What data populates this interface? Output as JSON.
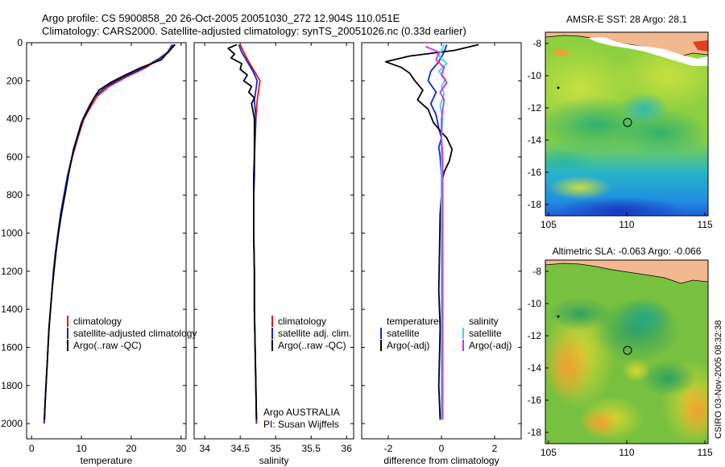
{
  "header": {
    "line1": "Argo profile: CS 5900858_20 26-Oct-2005 20051030_272 12.904S 110.051E",
    "line2": "Climatology: CARS2000. Satellite-adjusted climatology: synTS_20051026.nc (0.33d earlier)"
  },
  "credit": "CSIRO 03-Nov-2005 08:32:38",
  "colors": {
    "climatology": "#e8141c",
    "satellite": "#1428c8",
    "argo": "#000000",
    "salinity_satellite": "#28e0f0",
    "salinity_argo": "#e028e0",
    "land": "#f2b890"
  },
  "chart_data": [
    {
      "type": "line",
      "title": "",
      "xlabel": "temperature",
      "ylabel": "",
      "xlim": [
        -1,
        31
      ],
      "ylim": [
        2080,
        0
      ],
      "xticks": [
        0,
        10,
        20,
        30
      ],
      "xtick_labels": [
        "0",
        "10",
        "20",
        "30"
      ],
      "yticks": [
        0,
        200,
        400,
        600,
        800,
        1000,
        1200,
        1400,
        1600,
        1800,
        2000
      ],
      "ytick_labels": [
        "0",
        "200",
        "400",
        "600",
        "800",
        "1000",
        "1200",
        "1400",
        "1600",
        "1800",
        "2000"
      ],
      "legend": [
        "climatology",
        "satellite-adjusted climatology",
        "Argo(..raw -QC)"
      ],
      "series": [
        {
          "name": "climatology",
          "color": "#e8141c",
          "points": [
            [
              28.5,
              10
            ],
            [
              27.5,
              50
            ],
            [
              26,
              80
            ],
            [
              23,
              130
            ],
            [
              19,
              180
            ],
            [
              15.5,
              230
            ],
            [
              13.2,
              280
            ],
            [
              12,
              330
            ],
            [
              10.5,
              400
            ],
            [
              9.3,
              500
            ],
            [
              8.2,
              600
            ],
            [
              7.3,
              700
            ],
            [
              6.6,
              800
            ],
            [
              5.9,
              900
            ],
            [
              5.3,
              1000
            ],
            [
              4.8,
              1100
            ],
            [
              4.4,
              1200
            ],
            [
              4.1,
              1300
            ],
            [
              3.8,
              1400
            ],
            [
              3.5,
              1500
            ],
            [
              3.3,
              1600
            ],
            [
              3.1,
              1700
            ],
            [
              2.9,
              1800
            ],
            [
              2.7,
              1900
            ],
            [
              2.5,
              2000
            ]
          ]
        },
        {
          "name": "satellite-adjusted climatology",
          "color": "#1428c8",
          "points": [
            [
              28.2,
              10
            ],
            [
              27.3,
              50
            ],
            [
              25.8,
              80
            ],
            [
              22.6,
              130
            ],
            [
              18.5,
              180
            ],
            [
              15,
              230
            ],
            [
              12.8,
              280
            ],
            [
              11.6,
              330
            ],
            [
              10.3,
              400
            ],
            [
              9.2,
              500
            ],
            [
              8.1,
              600
            ],
            [
              7.2,
              700
            ],
            [
              6.5,
              800
            ],
            [
              5.8,
              900
            ],
            [
              5.3,
              1000
            ],
            [
              4.8,
              1100
            ],
            [
              4.4,
              1200
            ],
            [
              4.1,
              1300
            ],
            [
              3.8,
              1400
            ],
            [
              3.5,
              1500
            ],
            [
              3.3,
              1600
            ],
            [
              3.1,
              1700
            ],
            [
              2.9,
              1800
            ],
            [
              2.7,
              1900
            ],
            [
              2.5,
              2000
            ]
          ]
        },
        {
          "name": "Argo(..raw -QC)",
          "color": "#000000",
          "points": [
            [
              28.8,
              10
            ],
            [
              27,
              60
            ],
            [
              26,
              90
            ],
            [
              22,
              130
            ],
            [
              18.8,
              170
            ],
            [
              15.8,
              210
            ],
            [
              13.5,
              250
            ],
            [
              12.3,
              300
            ],
            [
              11.2,
              360
            ],
            [
              10,
              420
            ],
            [
              9.1,
              500
            ],
            [
              8.4,
              560
            ],
            [
              7.5,
              680
            ],
            [
              6.7,
              800
            ],
            [
              6,
              900
            ],
            [
              5.4,
              1000
            ],
            [
              4.9,
              1100
            ],
            [
              4.5,
              1200
            ],
            [
              4.1,
              1300
            ],
            [
              3.8,
              1400
            ],
            [
              3.5,
              1500
            ],
            [
              3.3,
              1600
            ],
            [
              3.1,
              1700
            ],
            [
              2.9,
              1800
            ],
            [
              2.7,
              1900
            ],
            [
              2.6,
              1980
            ]
          ]
        }
      ]
    },
    {
      "type": "line",
      "title": "",
      "xlabel": "salinity",
      "ylabel": "",
      "xlim": [
        33.85,
        36.1
      ],
      "ylim": [
        2080,
        0
      ],
      "xticks": [
        34,
        34.5,
        35,
        35.5,
        36
      ],
      "xtick_labels": [
        "34",
        "34.5",
        "35",
        "35.5",
        "36"
      ],
      "legend": [
        "climatology",
        "satellite adj. clim.",
        "Argo(..raw -QC)"
      ],
      "annotations": [
        "Argo AUSTRALIA",
        "PI: Susan Wijffels"
      ],
      "series": [
        {
          "name": "climatology",
          "color": "#e8141c",
          "points": [
            [
              34.5,
              10
            ],
            [
              34.55,
              50
            ],
            [
              34.62,
              100
            ],
            [
              34.7,
              150
            ],
            [
              34.78,
              200
            ],
            [
              34.76,
              250
            ],
            [
              34.74,
              300
            ],
            [
              34.72,
              400
            ],
            [
              34.71,
              500
            ],
            [
              34.7,
              600
            ],
            [
              34.7,
              700
            ],
            [
              34.69,
              800
            ],
            [
              34.69,
              1000
            ],
            [
              34.7,
              1200
            ],
            [
              34.7,
              1400
            ],
            [
              34.71,
              1600
            ],
            [
              34.72,
              1800
            ],
            [
              34.73,
              2000
            ]
          ]
        },
        {
          "name": "satellite adj. clim.",
          "color": "#1428c8",
          "points": [
            [
              34.48,
              10
            ],
            [
              34.52,
              50
            ],
            [
              34.6,
              100
            ],
            [
              34.68,
              150
            ],
            [
              34.74,
              200
            ],
            [
              34.72,
              250
            ],
            [
              34.7,
              300
            ],
            [
              34.72,
              400
            ],
            [
              34.71,
              500
            ],
            [
              34.7,
              600
            ],
            [
              34.7,
              700
            ],
            [
              34.69,
              800
            ],
            [
              34.69,
              1000
            ],
            [
              34.7,
              1200
            ],
            [
              34.7,
              1400
            ],
            [
              34.71,
              1600
            ],
            [
              34.72,
              1800
            ],
            [
              34.73,
              2000
            ]
          ]
        },
        {
          "name": "Argo(..raw -QC)",
          "color": "#000000",
          "points": [
            [
              34.45,
              10
            ],
            [
              34.33,
              30
            ],
            [
              34.42,
              60
            ],
            [
              34.37,
              80
            ],
            [
              34.52,
              110
            ],
            [
              34.5,
              140
            ],
            [
              34.6,
              170
            ],
            [
              34.55,
              200
            ],
            [
              34.66,
              230
            ],
            [
              34.62,
              260
            ],
            [
              34.7,
              290
            ],
            [
              34.66,
              320
            ],
            [
              34.7,
              400
            ],
            [
              34.7,
              500
            ],
            [
              34.7,
              600
            ],
            [
              34.69,
              700
            ],
            [
              34.69,
              800
            ],
            [
              34.69,
              1000
            ],
            [
              34.7,
              1200
            ],
            [
              34.7,
              1400
            ],
            [
              34.71,
              1600
            ],
            [
              34.72,
              1800
            ],
            [
              34.73,
              1980
            ]
          ]
        }
      ]
    },
    {
      "type": "line",
      "title": "",
      "xlabel": "difference from climatology",
      "ylabel": "",
      "xlim": [
        -3,
        3
      ],
      "ylim": [
        2080,
        0
      ],
      "xticks": [
        -2,
        0,
        2
      ],
      "xtick_labels": [
        "-2",
        "0",
        "2"
      ],
      "legend": [
        "temperature",
        "satellite",
        "Argo(-adj)",
        "salinity",
        "satellite",
        "Argo(-adj)"
      ],
      "series": [
        {
          "name": "temperature satellite",
          "color": "#1428c8",
          "points": [
            [
              0.2,
              10
            ],
            [
              0.1,
              50
            ],
            [
              -0.1,
              100
            ],
            [
              -0.4,
              150
            ],
            [
              -0.5,
              200
            ],
            [
              -0.2,
              260
            ],
            [
              -0.4,
              320
            ],
            [
              -0.2,
              380
            ],
            [
              -0.1,
              450
            ],
            [
              0,
              500
            ],
            [
              -0.1,
              550
            ],
            [
              -0.05,
              600
            ],
            [
              0,
              700
            ],
            [
              0,
              800
            ],
            [
              0,
              1000
            ],
            [
              0,
              1400
            ],
            [
              0,
              1800
            ],
            [
              0,
              1980
            ]
          ]
        },
        {
          "name": "temperature Argo(-adj)",
          "color": "#000000",
          "points": [
            [
              1.4,
              10
            ],
            [
              0.5,
              40
            ],
            [
              -1.2,
              70
            ],
            [
              -2.1,
              100
            ],
            [
              -1.5,
              130
            ],
            [
              -1.2,
              160
            ],
            [
              -1,
              200
            ],
            [
              -0.7,
              250
            ],
            [
              -0.9,
              300
            ],
            [
              -0.5,
              350
            ],
            [
              -0.3,
              420
            ],
            [
              0,
              470
            ],
            [
              0.2,
              500
            ],
            [
              0.4,
              560
            ],
            [
              0.3,
              620
            ],
            [
              0.1,
              680
            ],
            [
              0,
              740
            ],
            [
              0,
              800
            ],
            [
              -0.05,
              900
            ],
            [
              -0.1,
              1300
            ],
            [
              -0.05,
              1500
            ],
            [
              -0.1,
              1800
            ],
            [
              -0.05,
              1980
            ]
          ]
        },
        {
          "name": "salinity satellite",
          "color": "#28e0f0",
          "points": [
            [
              0.1,
              10
            ],
            [
              0,
              40
            ],
            [
              -0.1,
              70
            ],
            [
              0.2,
              110
            ],
            [
              -0.1,
              150
            ],
            [
              0.15,
              190
            ],
            [
              0,
              230
            ],
            [
              0.1,
              270
            ],
            [
              -0.05,
              330
            ],
            [
              0.05,
              400
            ],
            [
              0,
              500
            ],
            [
              0,
              700
            ],
            [
              0,
              900
            ],
            [
              0,
              1200
            ],
            [
              0,
              1600
            ],
            [
              0,
              1980
            ]
          ]
        },
        {
          "name": "salinity Argo(-adj)",
          "color": "#e028e0",
          "points": [
            [
              -0.6,
              20
            ],
            [
              -0.1,
              50
            ],
            [
              -0.2,
              90
            ],
            [
              0.1,
              130
            ],
            [
              0,
              170
            ],
            [
              0.2,
              210
            ],
            [
              -0.05,
              260
            ],
            [
              0.1,
              300
            ],
            [
              0,
              400
            ],
            [
              0,
              500
            ],
            [
              0.05,
              600
            ],
            [
              0.05,
              800
            ],
            [
              0.05,
              1000
            ],
            [
              0.05,
              1300
            ],
            [
              0.05,
              1600
            ],
            [
              0.05,
              1800
            ],
            [
              0.05,
              1980
            ]
          ]
        }
      ]
    },
    {
      "type": "heatmap",
      "title": "AMSR-E SST: 28 Argo: 28.1",
      "xlim": [
        104.8,
        115.2
      ],
      "ylim": [
        -18.7,
        -7.3
      ],
      "xticks": [
        105,
        110,
        115
      ],
      "xtick_labels": [
        "105",
        "110",
        "115"
      ],
      "yticks": [
        -8,
        -10,
        -12,
        -14,
        -16,
        -18
      ],
      "ytick_labels": [
        "-8",
        "-10",
        "-12",
        "-14",
        "-16",
        "-18"
      ],
      "marker": {
        "lon": 110.051,
        "lat": -12.904
      }
    },
    {
      "type": "heatmap",
      "title": "Altimetric SLA: -0.063 Argo: -0.066",
      "xlim": [
        104.8,
        115.2
      ],
      "ylim": [
        -18.7,
        -7.3
      ],
      "xticks": [
        105,
        110,
        115
      ],
      "xtick_labels": [
        "105",
        "110",
        "115"
      ],
      "yticks": [
        -8,
        -10,
        -12,
        -14,
        -16,
        -18
      ],
      "ytick_labels": [
        "-8",
        "-10",
        "-12",
        "-14",
        "-16",
        "-18"
      ],
      "marker": {
        "lon": 110.051,
        "lat": -12.904
      }
    }
  ]
}
